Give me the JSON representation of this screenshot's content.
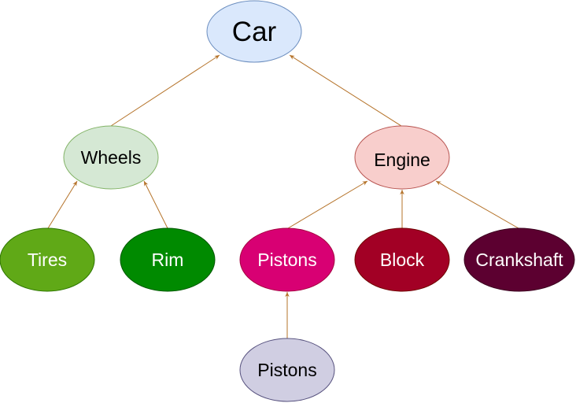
{
  "diagram": {
    "arrow_color": "#b5732a",
    "nodes": [
      {
        "id": "car",
        "label": "Car",
        "fill": "#dae8fc",
        "stroke": "#6c8ebf",
        "text_color": "#000000"
      },
      {
        "id": "wheels",
        "label": "Wheels",
        "fill": "#d5e8d4",
        "stroke": "#82b366",
        "text_color": "#000000"
      },
      {
        "id": "engine",
        "label": "Engine",
        "fill": "#f8cecc",
        "stroke": "#b85450",
        "text_color": "#000000"
      },
      {
        "id": "tires",
        "label": "Tires",
        "fill": "#60a917",
        "stroke": "#2d7600",
        "text_color": "#ffffff"
      },
      {
        "id": "rim",
        "label": "Rim",
        "fill": "#008a00",
        "stroke": "#005700",
        "text_color": "#ffffff"
      },
      {
        "id": "pistons",
        "label": "Pistons",
        "fill": "#d80073",
        "stroke": "#a50040",
        "text_color": "#ffffff"
      },
      {
        "id": "block",
        "label": "Block",
        "fill": "#a20025",
        "stroke": "#6f0000",
        "text_color": "#ffffff"
      },
      {
        "id": "crankshaft",
        "label": "Crankshaft",
        "fill": "#5c0030",
        "stroke": "#3a001e",
        "text_color": "#ffffff"
      },
      {
        "id": "pistons2",
        "label": "Pistons",
        "fill": "#d0cee2",
        "stroke": "#56517e",
        "text_color": "#000000"
      }
    ],
    "edges": [
      {
        "from": "wheels",
        "to": "car"
      },
      {
        "from": "engine",
        "to": "car"
      },
      {
        "from": "tires",
        "to": "wheels"
      },
      {
        "from": "rim",
        "to": "wheels"
      },
      {
        "from": "pistons",
        "to": "engine"
      },
      {
        "from": "block",
        "to": "engine"
      },
      {
        "from": "crankshaft",
        "to": "engine"
      },
      {
        "from": "pistons2",
        "to": "pistons"
      }
    ]
  }
}
